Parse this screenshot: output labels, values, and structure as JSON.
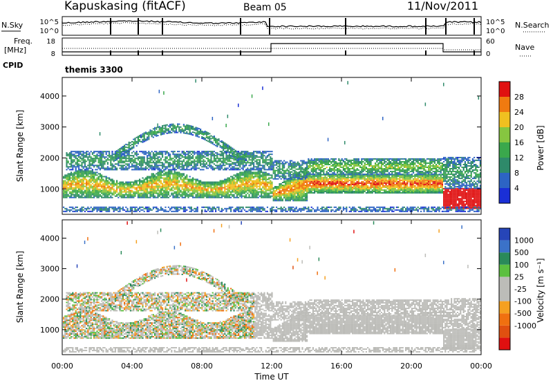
{
  "header": {
    "station": "Kapuskasing (fitACF)",
    "beam": "Beam 05",
    "date": "11/Nov/2011"
  },
  "meta_labels": {
    "nsky": "N.Sky",
    "freq": "Freq.",
    "mhz": "[MHz]",
    "cpid": "CPID",
    "nsearch": "N.Search",
    "nave": "Nave",
    "program": "themis 3300"
  },
  "nsky_ticks": [
    "10^5",
    "10^0"
  ],
  "nsearch_ticks": [
    "10^5",
    "10^0"
  ],
  "freq_ticks": [
    "18",
    "8"
  ],
  "nave_ticks": [
    "60",
    "0"
  ],
  "colors": {
    "power": [
      "#1a2fd6",
      "#2d64c4",
      "#2e8a6a",
      "#3aa84c",
      "#86c640",
      "#f0c020",
      "#f07a10",
      "#e01010"
    ],
    "velocity": [
      "#2645b8",
      "#3b72c8",
      "#2a8a5a",
      "#5cc040",
      "#bcbcb8",
      "#bcbcb8",
      "#f5a020",
      "#f07010",
      "#e05010",
      "#e01010"
    ]
  },
  "chart_data": [
    {
      "type": "heatmap",
      "name": "power-panel",
      "ylabel": "Slant Range [km]",
      "y_ticks": [
        "4000",
        "3000",
        "2000",
        "1000"
      ],
      "y_values": [
        4000,
        3000,
        2000,
        1000
      ],
      "ylim": [
        180,
        4600
      ],
      "colorbar_label": "Power [dB]",
      "colorbar_ticks": [
        "28",
        "24",
        "20",
        "16",
        "12",
        "8",
        "4"
      ],
      "colorbar_values": [
        28,
        24,
        20,
        16,
        12,
        8,
        4
      ],
      "colorbar_range": [
        0,
        32
      ],
      "xlim_hours": [
        0,
        24
      ]
    },
    {
      "type": "heatmap",
      "name": "velocity-panel",
      "ylabel": "Slant Range [km]",
      "y_ticks": [
        "4000",
        "3000",
        "2000",
        "1000"
      ],
      "y_values": [
        4000,
        3000,
        2000,
        1000
      ],
      "ylim": [
        180,
        4600
      ],
      "colorbar_label": "Velocity [m s⁻¹]",
      "colorbar_ticks": [
        "1000",
        "500",
        "100",
        "25",
        "-25",
        "-100",
        "-500",
        "-1000"
      ],
      "xlabel": "Time UT",
      "x_ticks": [
        "00:00",
        "04:00",
        "08:00",
        "12:00",
        "16:00",
        "20:00",
        "00:00"
      ],
      "x_values": [
        0,
        4,
        8,
        12,
        16,
        20,
        24
      ],
      "xlim_hours": [
        0,
        24
      ]
    }
  ]
}
